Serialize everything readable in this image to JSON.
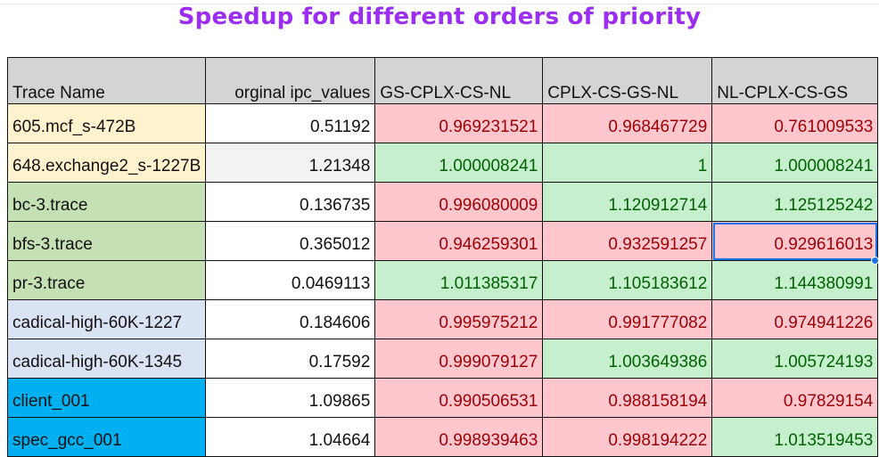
{
  "title": "Speedup for different orders of priority",
  "colors": {
    "title": "#9b2ef2",
    "header_bg": "#d4d4d4",
    "bad_bg": "#fec7ce",
    "bad_fg": "#9c0006",
    "good_bg": "#c6efce",
    "good_fg": "#006100",
    "selection": "#1a73e8"
  },
  "headers": [
    "Trace Name",
    "orginal ipc_values",
    "GS-CPLX-CS-NL",
    "CPLX-CS-GS-NL",
    "NL-CPLX-CS-GS"
  ],
  "rows": [
    {
      "name": "605.mcf_s-472B",
      "name_bg": "#fff2cc",
      "ipc": "0.51192",
      "ipc_bg": "#ffffff",
      "values": [
        "0.969231521",
        "0.968467729",
        "0.761009533"
      ],
      "status": [
        "red",
        "red",
        "red"
      ]
    },
    {
      "name": "648.exchange2_s-1227B",
      "name_bg": "#fff2cc",
      "ipc": "1.21348",
      "ipc_bg": "#f2f2f2",
      "values": [
        "1.000008241",
        "1",
        "1.000008241"
      ],
      "status": [
        "grn",
        "grn",
        "grn"
      ]
    },
    {
      "name": "bc-3.trace",
      "name_bg": "#c5e0b4",
      "ipc": "0.136735",
      "ipc_bg": "#ffffff",
      "values": [
        "0.996080009",
        "1.120912714",
        "1.125125242"
      ],
      "status": [
        "red",
        "grn",
        "grn"
      ]
    },
    {
      "name": "bfs-3.trace",
      "name_bg": "#c5e0b4",
      "ipc": "0.365012",
      "ipc_bg": "#ffffff",
      "values": [
        "0.946259301",
        "0.932591257",
        "0.929616013"
      ],
      "status": [
        "red",
        "red",
        "red"
      ]
    },
    {
      "name": "pr-3.trace",
      "name_bg": "#c5e0b4",
      "ipc": "0.0469113",
      "ipc_bg": "#ffffff",
      "values": [
        "1.011385317",
        "1.105183612",
        "1.144380991"
      ],
      "status": [
        "grn",
        "grn",
        "grn"
      ]
    },
    {
      "name": "cadical-high-60K-1227",
      "name_bg": "#dae3f3",
      "ipc": "0.184606",
      "ipc_bg": "#ffffff",
      "values": [
        "0.995975212",
        "0.991777082",
        "0.974941226"
      ],
      "status": [
        "red",
        "red",
        "red"
      ]
    },
    {
      "name": "cadical-high-60K-1345",
      "name_bg": "#dae3f3",
      "ipc": "0.17592",
      "ipc_bg": "#ffffff",
      "values": [
        "0.999079127",
        "1.003649386",
        "1.005724193"
      ],
      "status": [
        "red",
        "grn",
        "grn"
      ]
    },
    {
      "name": "client_001",
      "name_bg": "#00b0f0",
      "ipc": "1.09865",
      "ipc_bg": "#ffffff",
      "values": [
        "0.990506531",
        "0.988158194",
        "0.97829154"
      ],
      "status": [
        "red",
        "red",
        "red"
      ]
    },
    {
      "name": "spec_gcc_001",
      "name_bg": "#00b0f0",
      "ipc": "1.04664",
      "ipc_bg": "#ffffff",
      "values": [
        "0.998939463",
        "0.998194222",
        "1.013519453"
      ],
      "status": [
        "red",
        "red",
        "grn"
      ]
    }
  ],
  "selected_cell": {
    "row": 3,
    "col": 4
  }
}
